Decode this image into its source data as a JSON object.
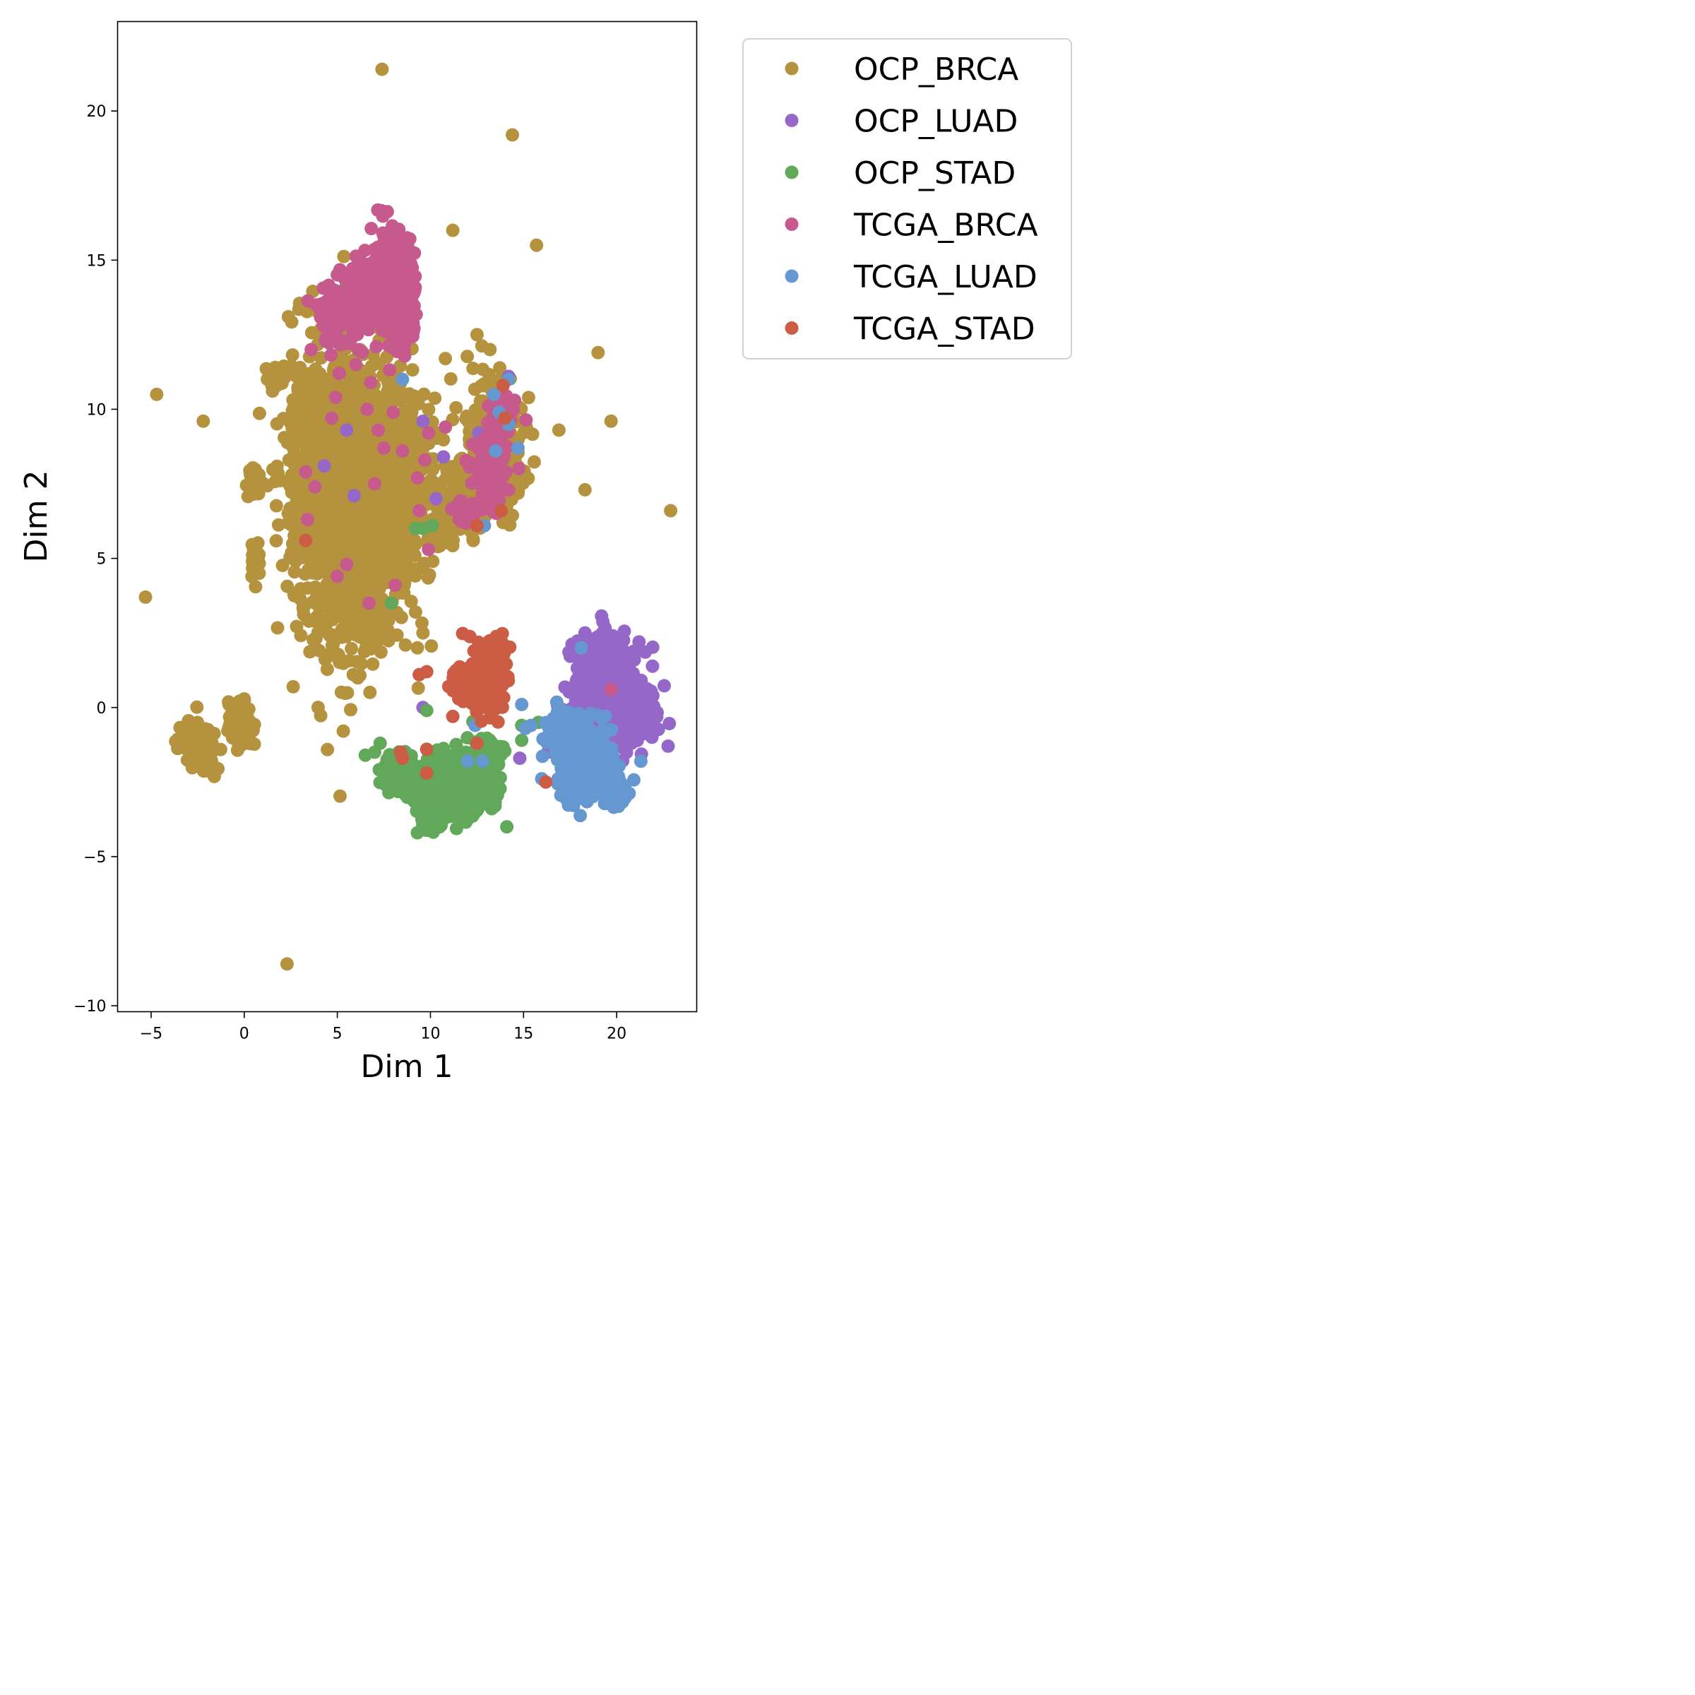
{
  "chart_data": {
    "type": "scatter",
    "title": "",
    "xlabel": "Dim 1",
    "ylabel": "Dim 2",
    "xlim": [
      -6.8,
      24.3
    ],
    "ylim": [
      -10.2,
      23.0
    ],
    "xticks": [
      -5,
      0,
      5,
      10,
      15,
      20
    ],
    "yticks": [
      -10,
      -5,
      0,
      5,
      10,
      15,
      20
    ],
    "xtick_labels": [
      "−5",
      "0",
      "5",
      "10",
      "15",
      "20"
    ],
    "ytick_labels": [
      "−10",
      "−5",
      "0",
      "5",
      "10",
      "15",
      "20"
    ],
    "grid": false,
    "legend_position": "outside-top-right",
    "series": [
      {
        "name": "OCP_BRCA",
        "color": "#b5923e",
        "points": [
          [
            7.4,
            21.4
          ],
          [
            14.4,
            19.2
          ],
          [
            11.2,
            16.0
          ],
          [
            15.7,
            15.5
          ],
          [
            19.0,
            11.9
          ],
          [
            19.7,
            9.6
          ],
          [
            -4.7,
            10.5
          ],
          [
            -2.2,
            9.6
          ],
          [
            -5.3,
            3.7
          ],
          [
            16.9,
            9.3
          ],
          [
            18.3,
            7.3
          ],
          [
            22.9,
            6.6
          ],
          [
            2.3,
            -8.6
          ],
          [
            12.5,
            12.5
          ],
          [
            13.2,
            12.0
          ],
          [
            10.8,
            11.7
          ],
          [
            3.0,
            11.4
          ],
          [
            1.5,
            11.2
          ],
          [
            0.8,
            7.8
          ],
          [
            0.5,
            5.3
          ],
          [
            0.8,
            4.5
          ],
          [
            9.2,
            3.2
          ],
          [
            9.6,
            2.5
          ],
          [
            9.3,
            2.0
          ],
          [
            12.3,
            5.6
          ],
          [
            13.9,
            6.2
          ],
          [
            14.5,
            7.5
          ],
          [
            15.2,
            9.3
          ],
          [
            14.2,
            11.0
          ]
        ],
        "clusters": [
          [
            6.0,
            7.0,
            2.4,
            4.0,
            1200
          ],
          [
            3.2,
            8.0,
            0.9,
            3.3,
            220
          ],
          [
            8.5,
            7.5,
            1.4,
            2.3,
            260
          ],
          [
            6.2,
            3.3,
            1.4,
            0.9,
            150
          ],
          [
            13.2,
            9.2,
            1.4,
            1.9,
            160
          ],
          [
            12.0,
            7.3,
            1.1,
            1.0,
            110
          ],
          [
            14.2,
            8.0,
            0.6,
            1.2,
            60
          ],
          [
            -2.7,
            -1.1,
            0.7,
            0.5,
            130
          ],
          [
            -2.0,
            -1.8,
            0.4,
            0.5,
            40
          ],
          [
            -0.2,
            -0.6,
            0.5,
            0.6,
            100
          ],
          [
            0.6,
            5.0,
            0.2,
            0.5,
            30
          ],
          [
            0.6,
            7.5,
            0.4,
            0.4,
            30
          ],
          [
            1.8,
            11.1,
            0.5,
            0.3,
            30
          ],
          [
            6.0,
            13.5,
            0.6,
            0.8,
            40
          ],
          [
            10.5,
            6.0,
            0.7,
            0.5,
            50
          ]
        ]
      },
      {
        "name": "OCP_LUAD",
        "color": "#9467c9",
        "points": [
          [
            5.5,
            9.3
          ],
          [
            4.3,
            8.1
          ],
          [
            5.9,
            7.1
          ],
          [
            9.6,
            9.6
          ],
          [
            10.7,
            8.4
          ],
          [
            10.3,
            7.0
          ],
          [
            14.2,
            11.1
          ],
          [
            12.6,
            9.2
          ],
          [
            9.6,
            0.0
          ],
          [
            16.3,
            -1.5
          ],
          [
            14.8,
            -1.7
          ],
          [
            18.3,
            2.5
          ],
          [
            19.8,
            2.4
          ],
          [
            21.2,
            2.2
          ]
        ],
        "clusters": [
          [
            19.6,
            0.2,
            1.6,
            1.4,
            520
          ],
          [
            18.8,
            1.5,
            0.9,
            0.8,
            140
          ],
          [
            21.5,
            -0.2,
            0.5,
            0.6,
            80
          ],
          [
            17.5,
            -0.8,
            0.8,
            0.4,
            60
          ]
        ]
      },
      {
        "name": "OCP_STAD",
        "color": "#62a85b",
        "points": [
          [
            7.9,
            3.5
          ],
          [
            9.2,
            6.0
          ],
          [
            9.6,
            6.0
          ],
          [
            10.1,
            6.1
          ],
          [
            9.8,
            -0.1
          ],
          [
            7.3,
            -1.2
          ],
          [
            7.0,
            -1.5
          ],
          [
            6.5,
            -1.6
          ],
          [
            14.9,
            -0.6
          ],
          [
            15.8,
            -0.5
          ],
          [
            17.3,
            -0.5
          ],
          [
            18.3,
            -0.5
          ],
          [
            14.9,
            -1.1
          ],
          [
            14.1,
            -4.0
          ],
          [
            9.3,
            -4.2
          ],
          [
            12.6,
            8.7
          ]
        ],
        "clusters": [
          [
            11.2,
            -2.6,
            1.6,
            0.8,
            480
          ],
          [
            8.3,
            -2.2,
            0.7,
            0.6,
            80
          ],
          [
            12.9,
            -1.6,
            0.8,
            0.6,
            70
          ],
          [
            10.0,
            -3.6,
            0.6,
            0.4,
            60
          ]
        ]
      },
      {
        "name": "TCGA_BRCA",
        "color": "#c65a8c",
        "points": [
          [
            3.6,
            12.0
          ],
          [
            4.4,
            12.4
          ],
          [
            5.1,
            12.2
          ],
          [
            6.0,
            11.5
          ],
          [
            3.3,
            7.9
          ],
          [
            3.8,
            7.4
          ],
          [
            3.4,
            6.3
          ],
          [
            5.0,
            4.4
          ],
          [
            5.5,
            4.8
          ],
          [
            6.7,
            3.5
          ],
          [
            8.1,
            4.1
          ],
          [
            9.9,
            5.3
          ],
          [
            9.4,
            6.6
          ],
          [
            9.3,
            7.7
          ],
          [
            10.8,
            9.4
          ],
          [
            9.9,
            9.2
          ],
          [
            7.2,
            9.3
          ],
          [
            7.5,
            8.7
          ],
          [
            8.5,
            8.6
          ],
          [
            9.7,
            8.3
          ],
          [
            7.0,
            7.5
          ],
          [
            6.6,
            10.0
          ],
          [
            6.8,
            10.9
          ],
          [
            5.1,
            11.2
          ],
          [
            4.9,
            10.4
          ],
          [
            4.7,
            9.7
          ],
          [
            8.0,
            9.9
          ],
          [
            19.7,
            0.6
          ]
        ],
        "clusters": [
          [
            8.0,
            14.2,
            0.9,
            1.4,
            320
          ],
          [
            6.3,
            13.8,
            0.9,
            0.9,
            150
          ],
          [
            5.1,
            13.2,
            0.9,
            0.8,
            90
          ],
          [
            8.6,
            13.0,
            0.5,
            0.8,
            50
          ],
          [
            13.2,
            7.8,
            0.7,
            1.0,
            120
          ],
          [
            12.0,
            6.6,
            0.6,
            0.3,
            40
          ],
          [
            13.8,
            9.6,
            0.6,
            0.8,
            50
          ]
        ]
      },
      {
        "name": "TCGA_LUAD",
        "color": "#6598d0",
        "points": [
          [
            8.5,
            11.0
          ],
          [
            13.4,
            10.5
          ],
          [
            13.7,
            9.9
          ],
          [
            14.2,
            9.5
          ],
          [
            14.7,
            8.7
          ],
          [
            13.5,
            8.6
          ],
          [
            14.2,
            11.0
          ],
          [
            12.9,
            6.1
          ],
          [
            18.1,
            2.0
          ],
          [
            14.9,
            0.1
          ],
          [
            15.1,
            -0.7
          ],
          [
            15.4,
            -0.6
          ],
          [
            12.0,
            -1.8
          ],
          [
            12.8,
            -1.8
          ],
          [
            21.3,
            -1.8
          ],
          [
            12.4,
            -0.6
          ]
        ],
        "clusters": [
          [
            18.3,
            -1.8,
            1.2,
            1.0,
            420
          ],
          [
            17.2,
            -0.7,
            0.6,
            0.6,
            100
          ],
          [
            19.9,
            -2.8,
            0.5,
            0.5,
            60
          ]
        ]
      },
      {
        "name": "TCGA_STAD",
        "color": "#cc5c44",
        "points": [
          [
            3.3,
            5.6
          ],
          [
            14.0,
            9.7
          ],
          [
            13.9,
            10.8
          ],
          [
            13.8,
            6.6
          ],
          [
            12.5,
            6.1
          ],
          [
            9.4,
            1.1
          ],
          [
            9.8,
            1.2
          ],
          [
            11.2,
            -0.3
          ],
          [
            12.5,
            -1.2
          ],
          [
            9.8,
            -1.4
          ],
          [
            8.4,
            -1.5
          ],
          [
            8.5,
            -1.7
          ],
          [
            9.8,
            -2.2
          ],
          [
            16.2,
            -2.5
          ]
        ],
        "clusters": [
          [
            12.9,
            0.9,
            0.8,
            0.8,
            240
          ],
          [
            13.4,
            1.8,
            0.5,
            0.4,
            60
          ],
          [
            11.5,
            0.8,
            0.5,
            0.4,
            50
          ]
        ]
      }
    ]
  }
}
